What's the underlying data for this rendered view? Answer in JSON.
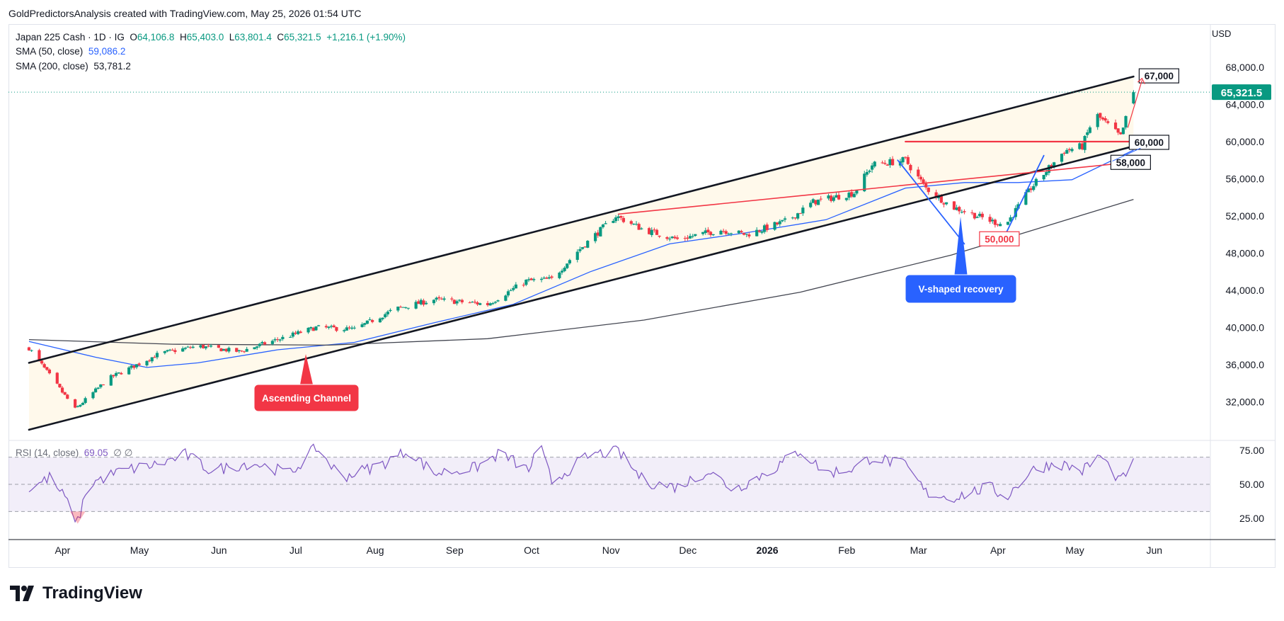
{
  "header": {
    "attribution": "GoldPredictorsAnalysis created with TradingView.com, May 25, 2026 01:54 UTC"
  },
  "legend": {
    "symbol": "Japan 225 Cash · 1D · IG",
    "o_label": "O",
    "o_value": "64,106.8",
    "h_label": "H",
    "h_value": "65,403.0",
    "l_label": "L",
    "l_value": "63,801.4",
    "c_label": "C",
    "c_value": "65,321.5",
    "change": "+1,216.1 (+1.90%)",
    "sma50_label": "SMA (50, close)",
    "sma50_value": "59,086.2",
    "sma200_label": "SMA (200, close)",
    "sma200_value": "53,781.2",
    "rsi_label": "RSI (14, close)",
    "rsi_value": "69.05",
    "rsi_extra": "∅ ∅"
  },
  "price_axis": {
    "currency": "USD",
    "last_price": "65,321.5"
  },
  "annotations": {
    "level_67000": "67,000",
    "level_60000": "60,000",
    "level_58000": "58,000",
    "level_50000": "50,000",
    "ascending_channel": "Ascending Channel",
    "v_shaped_recovery": "V-shaped recovery"
  },
  "footer": {
    "brand": "TradingView"
  },
  "colors": {
    "up": "#089981",
    "down": "#f23645",
    "sma50": "#2962ff",
    "sma200": "#434651",
    "rsi": "#7e57c2",
    "channel": "#131722",
    "support_red": "#f23645",
    "callout_red": "#f23645",
    "callout_blue": "#2962ff"
  },
  "chart_data": [
    {
      "type": "candlestick",
      "title": "Japan 225 Cash · 1D · IG",
      "x_ticks": [
        "Apr",
        "May",
        "Jun",
        "Jul",
        "Aug",
        "Sep",
        "Oct",
        "Nov",
        "Dec",
        "2026",
        "Feb",
        "Mar",
        "Apr",
        "May",
        "Jun"
      ],
      "y_ticks": [
        "32,000.0",
        "36,000.0",
        "40,000.0",
        "44,000.0",
        "48,000.0",
        "52,000.0",
        "56,000.0",
        "60,000.0",
        "64,000.0",
        "68,000.0"
      ],
      "ylim": [
        28000,
        71000
      ],
      "price_anchors": [
        {
          "x": "2025-03-20",
          "y": 37800
        },
        {
          "x": "2025-04-07",
          "y": 31200
        },
        {
          "x": "2025-04-20",
          "y": 34500
        },
        {
          "x": "2025-05-10",
          "y": 37200
        },
        {
          "x": "2025-05-25",
          "y": 38000
        },
        {
          "x": "2025-06-10",
          "y": 37400
        },
        {
          "x": "2025-07-10",
          "y": 40000
        },
        {
          "x": "2025-07-25",
          "y": 39800
        },
        {
          "x": "2025-08-10",
          "y": 42000
        },
        {
          "x": "2025-08-25",
          "y": 43000
        },
        {
          "x": "2025-09-15",
          "y": 42500
        },
        {
          "x": "2025-09-30",
          "y": 45000
        },
        {
          "x": "2025-10-10",
          "y": 45200
        },
        {
          "x": "2025-10-20",
          "y": 48200
        },
        {
          "x": "2025-11-04",
          "y": 52000
        },
        {
          "x": "2025-11-15",
          "y": 50500
        },
        {
          "x": "2025-11-28",
          "y": 49500
        },
        {
          "x": "2025-12-15",
          "y": 50500
        },
        {
          "x": "2025-12-25",
          "y": 50000
        },
        {
          "x": "2026-01-10",
          "y": 51500
        },
        {
          "x": "2026-01-20",
          "y": 53500
        },
        {
          "x": "2026-02-05",
          "y": 54500
        },
        {
          "x": "2026-02-12",
          "y": 57500
        },
        {
          "x": "2026-02-25",
          "y": 58000
        },
        {
          "x": "2026-03-05",
          "y": 55000
        },
        {
          "x": "2026-03-15",
          "y": 53000
        },
        {
          "x": "2026-03-30",
          "y": 51500
        },
        {
          "x": "2026-04-05",
          "y": 51000
        },
        {
          "x": "2026-04-15",
          "y": 55000
        },
        {
          "x": "2026-04-28",
          "y": 59000
        },
        {
          "x": "2026-05-05",
          "y": 59500
        },
        {
          "x": "2026-05-10",
          "y": 63000
        },
        {
          "x": "2026-05-18",
          "y": 61000
        },
        {
          "x": "2026-05-20",
          "y": 60500
        },
        {
          "x": "2026-05-25",
          "y": 65321.5
        }
      ],
      "series": [
        {
          "name": "SMA (50, close)",
          "points": [
            {
              "x": "2025-03-20",
              "y": 38500
            },
            {
              "x": "2025-04-15",
              "y": 36800
            },
            {
              "x": "2025-05-05",
              "y": 35700
            },
            {
              "x": "2025-05-25",
              "y": 36200
            },
            {
              "x": "2025-06-25",
              "y": 37600
            },
            {
              "x": "2025-07-25",
              "y": 38400
            },
            {
              "x": "2025-08-25",
              "y": 40500
            },
            {
              "x": "2025-09-25",
              "y": 42500
            },
            {
              "x": "2025-10-25",
              "y": 46000
            },
            {
              "x": "2025-11-25",
              "y": 49000
            },
            {
              "x": "2025-12-25",
              "y": 50200
            },
            {
              "x": "2026-01-25",
              "y": 51600
            },
            {
              "x": "2026-02-25",
              "y": 55000
            },
            {
              "x": "2026-03-20",
              "y": 55600
            },
            {
              "x": "2026-04-10",
              "y": 55600
            },
            {
              "x": "2026-05-01",
              "y": 55900
            },
            {
              "x": "2026-05-25",
              "y": 59086.2
            }
          ]
        },
        {
          "name": "SMA (200, close)",
          "points": [
            {
              "x": "2025-03-20",
              "y": 38700
            },
            {
              "x": "2025-05-15",
              "y": 38200
            },
            {
              "x": "2025-07-15",
              "y": 38100
            },
            {
              "x": "2025-09-15",
              "y": 38800
            },
            {
              "x": "2025-11-15",
              "y": 40800
            },
            {
              "x": "2026-01-15",
              "y": 43800
            },
            {
              "x": "2026-03-15",
              "y": 47800
            },
            {
              "x": "2026-05-25",
              "y": 53781.2
            }
          ]
        }
      ],
      "lines": [
        {
          "name": "channel-upper",
          "from": {
            "x": "2025-03-20",
            "y": 36200
          },
          "to": {
            "x": "2026-05-25",
            "y": 67000
          }
        },
        {
          "name": "channel-lower",
          "from": {
            "x": "2025-03-20",
            "y": 29000
          },
          "to": {
            "x": "2026-05-25",
            "y": 59500
          }
        },
        {
          "name": "resistance-60000",
          "from": {
            "x": "2026-02-25",
            "y": 60000
          },
          "to": {
            "x": "2026-05-25",
            "y": 60000
          }
        },
        {
          "name": "support-trendline",
          "from": {
            "x": "2025-11-05",
            "y": 52200
          },
          "to": {
            "x": "2026-05-25",
            "y": 57800
          }
        },
        {
          "name": "v-down-leg",
          "from": {
            "x": "2026-02-22",
            "y": 58000
          },
          "to": {
            "x": "2026-03-20",
            "y": 49000
          }
        },
        {
          "name": "v-up-leg",
          "from": {
            "x": "2026-04-05",
            "y": 50000
          },
          "to": {
            "x": "2026-04-20",
            "y": 58500
          }
        }
      ],
      "levels": [
        67000,
        60000,
        58000,
        50000
      ],
      "last_price": 65321.5
    },
    {
      "type": "line",
      "title": "RSI (14, close)",
      "y_ticks": [
        "25.00",
        "50.00",
        "75.00"
      ],
      "ylim": [
        15,
        85
      ],
      "bands": [
        30,
        70
      ],
      "midline": 50,
      "series": [
        {
          "name": "RSI (14, close)",
          "points": [
            {
              "x": "2025-03-20",
              "y": 46
            },
            {
              "x": "2025-03-28",
              "y": 55
            },
            {
              "x": "2025-04-03",
              "y": 40
            },
            {
              "x": "2025-04-08",
              "y": 22
            },
            {
              "x": "2025-04-12",
              "y": 50
            },
            {
              "x": "2025-04-25",
              "y": 60
            },
            {
              "x": "2025-05-10",
              "y": 65
            },
            {
              "x": "2025-05-20",
              "y": 72
            },
            {
              "x": "2025-05-30",
              "y": 60
            },
            {
              "x": "2025-06-15",
              "y": 66
            },
            {
              "x": "2025-06-30",
              "y": 58
            },
            {
              "x": "2025-07-10",
              "y": 77
            },
            {
              "x": "2025-07-20",
              "y": 55
            },
            {
              "x": "2025-08-05",
              "y": 65
            },
            {
              "x": "2025-08-15",
              "y": 75
            },
            {
              "x": "2025-08-25",
              "y": 58
            },
            {
              "x": "2025-09-10",
              "y": 62
            },
            {
              "x": "2025-09-20",
              "y": 73
            },
            {
              "x": "2025-10-01",
              "y": 60
            },
            {
              "x": "2025-10-05",
              "y": 80
            },
            {
              "x": "2025-10-10",
              "y": 52
            },
            {
              "x": "2025-10-25",
              "y": 72
            },
            {
              "x": "2025-11-05",
              "y": 74
            },
            {
              "x": "2025-11-15",
              "y": 52
            },
            {
              "x": "2025-11-28",
              "y": 48
            },
            {
              "x": "2025-12-10",
              "y": 60
            },
            {
              "x": "2025-12-20",
              "y": 46
            },
            {
              "x": "2026-01-05",
              "y": 62
            },
            {
              "x": "2026-01-15",
              "y": 75
            },
            {
              "x": "2026-01-25",
              "y": 58
            },
            {
              "x": "2026-02-05",
              "y": 62
            },
            {
              "x": "2026-02-12",
              "y": 70
            },
            {
              "x": "2026-02-25",
              "y": 64
            },
            {
              "x": "2026-03-05",
              "y": 44
            },
            {
              "x": "2026-03-15",
              "y": 40
            },
            {
              "x": "2026-03-30",
              "y": 48
            },
            {
              "x": "2026-04-05",
              "y": 40
            },
            {
              "x": "2026-04-15",
              "y": 60
            },
            {
              "x": "2026-04-25",
              "y": 66
            },
            {
              "x": "2026-05-05",
              "y": 60
            },
            {
              "x": "2026-05-12",
              "y": 71
            },
            {
              "x": "2026-05-20",
              "y": 52
            },
            {
              "x": "2026-05-25",
              "y": 69.05
            }
          ]
        }
      ]
    }
  ]
}
